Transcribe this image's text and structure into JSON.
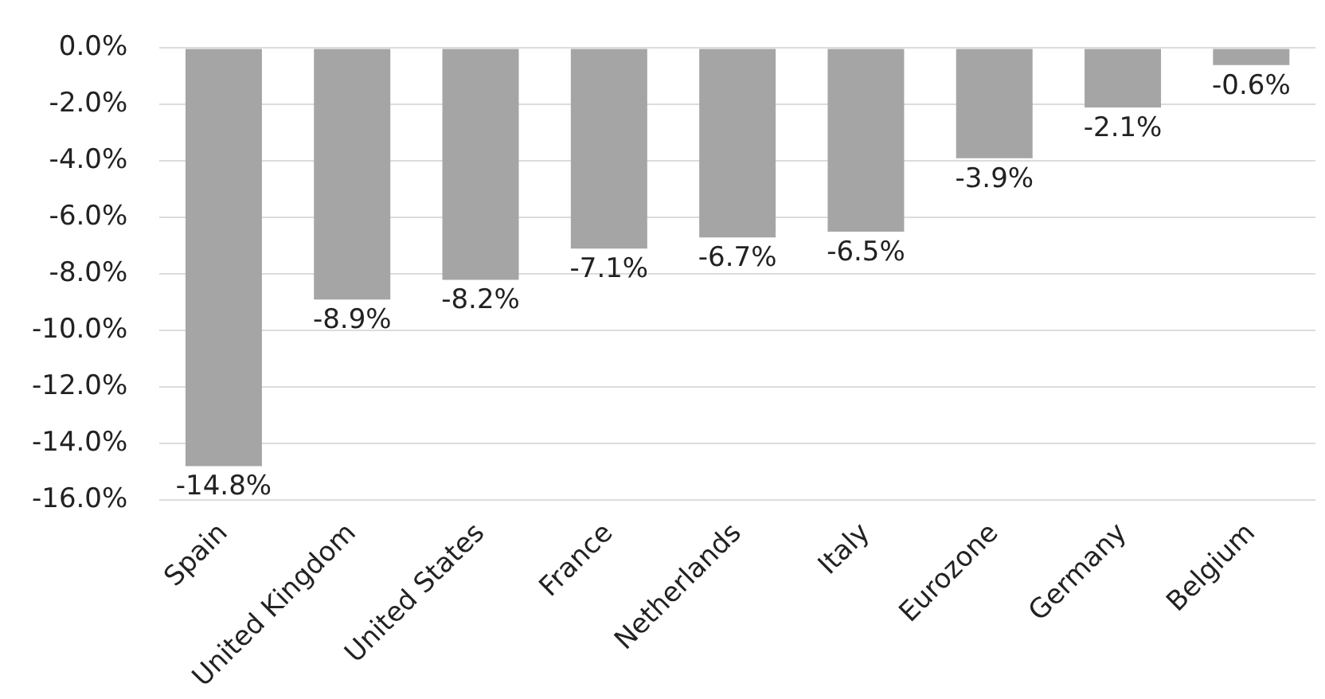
{
  "chart_data": {
    "type": "bar",
    "categories": [
      "Spain",
      "United Kingdom",
      "United States",
      "France",
      "Netherlands",
      "Italy",
      "Eurozone",
      "Germany",
      "Belgium"
    ],
    "values": [
      -14.8,
      -8.9,
      -8.2,
      -7.1,
      -6.7,
      -6.5,
      -3.9,
      -2.1,
      -0.6
    ],
    "value_labels": [
      "-14.8%",
      "-8.9%",
      "-8.2%",
      "-7.1%",
      "-6.7%",
      "-6.5%",
      "-3.9%",
      "-2.1%",
      "-0.6%"
    ],
    "color": "#a5a5a5",
    "ylim": [
      -16,
      0
    ],
    "yticks": [
      {
        "value": 0,
        "label": "0.0%"
      },
      {
        "value": -2,
        "label": "-2.0%"
      },
      {
        "value": -4,
        "label": "-4.0%"
      },
      {
        "value": -6,
        "label": "-6.0%"
      },
      {
        "value": -8,
        "label": "-8.0%"
      },
      {
        "value": -10,
        "label": "-10.0%"
      },
      {
        "value": -12,
        "label": "-12.0%"
      },
      {
        "value": -14,
        "label": "-14.0%"
      },
      {
        "value": -16,
        "label": "-16.0%"
      }
    ],
    "grid": "y",
    "legend": false
  }
}
